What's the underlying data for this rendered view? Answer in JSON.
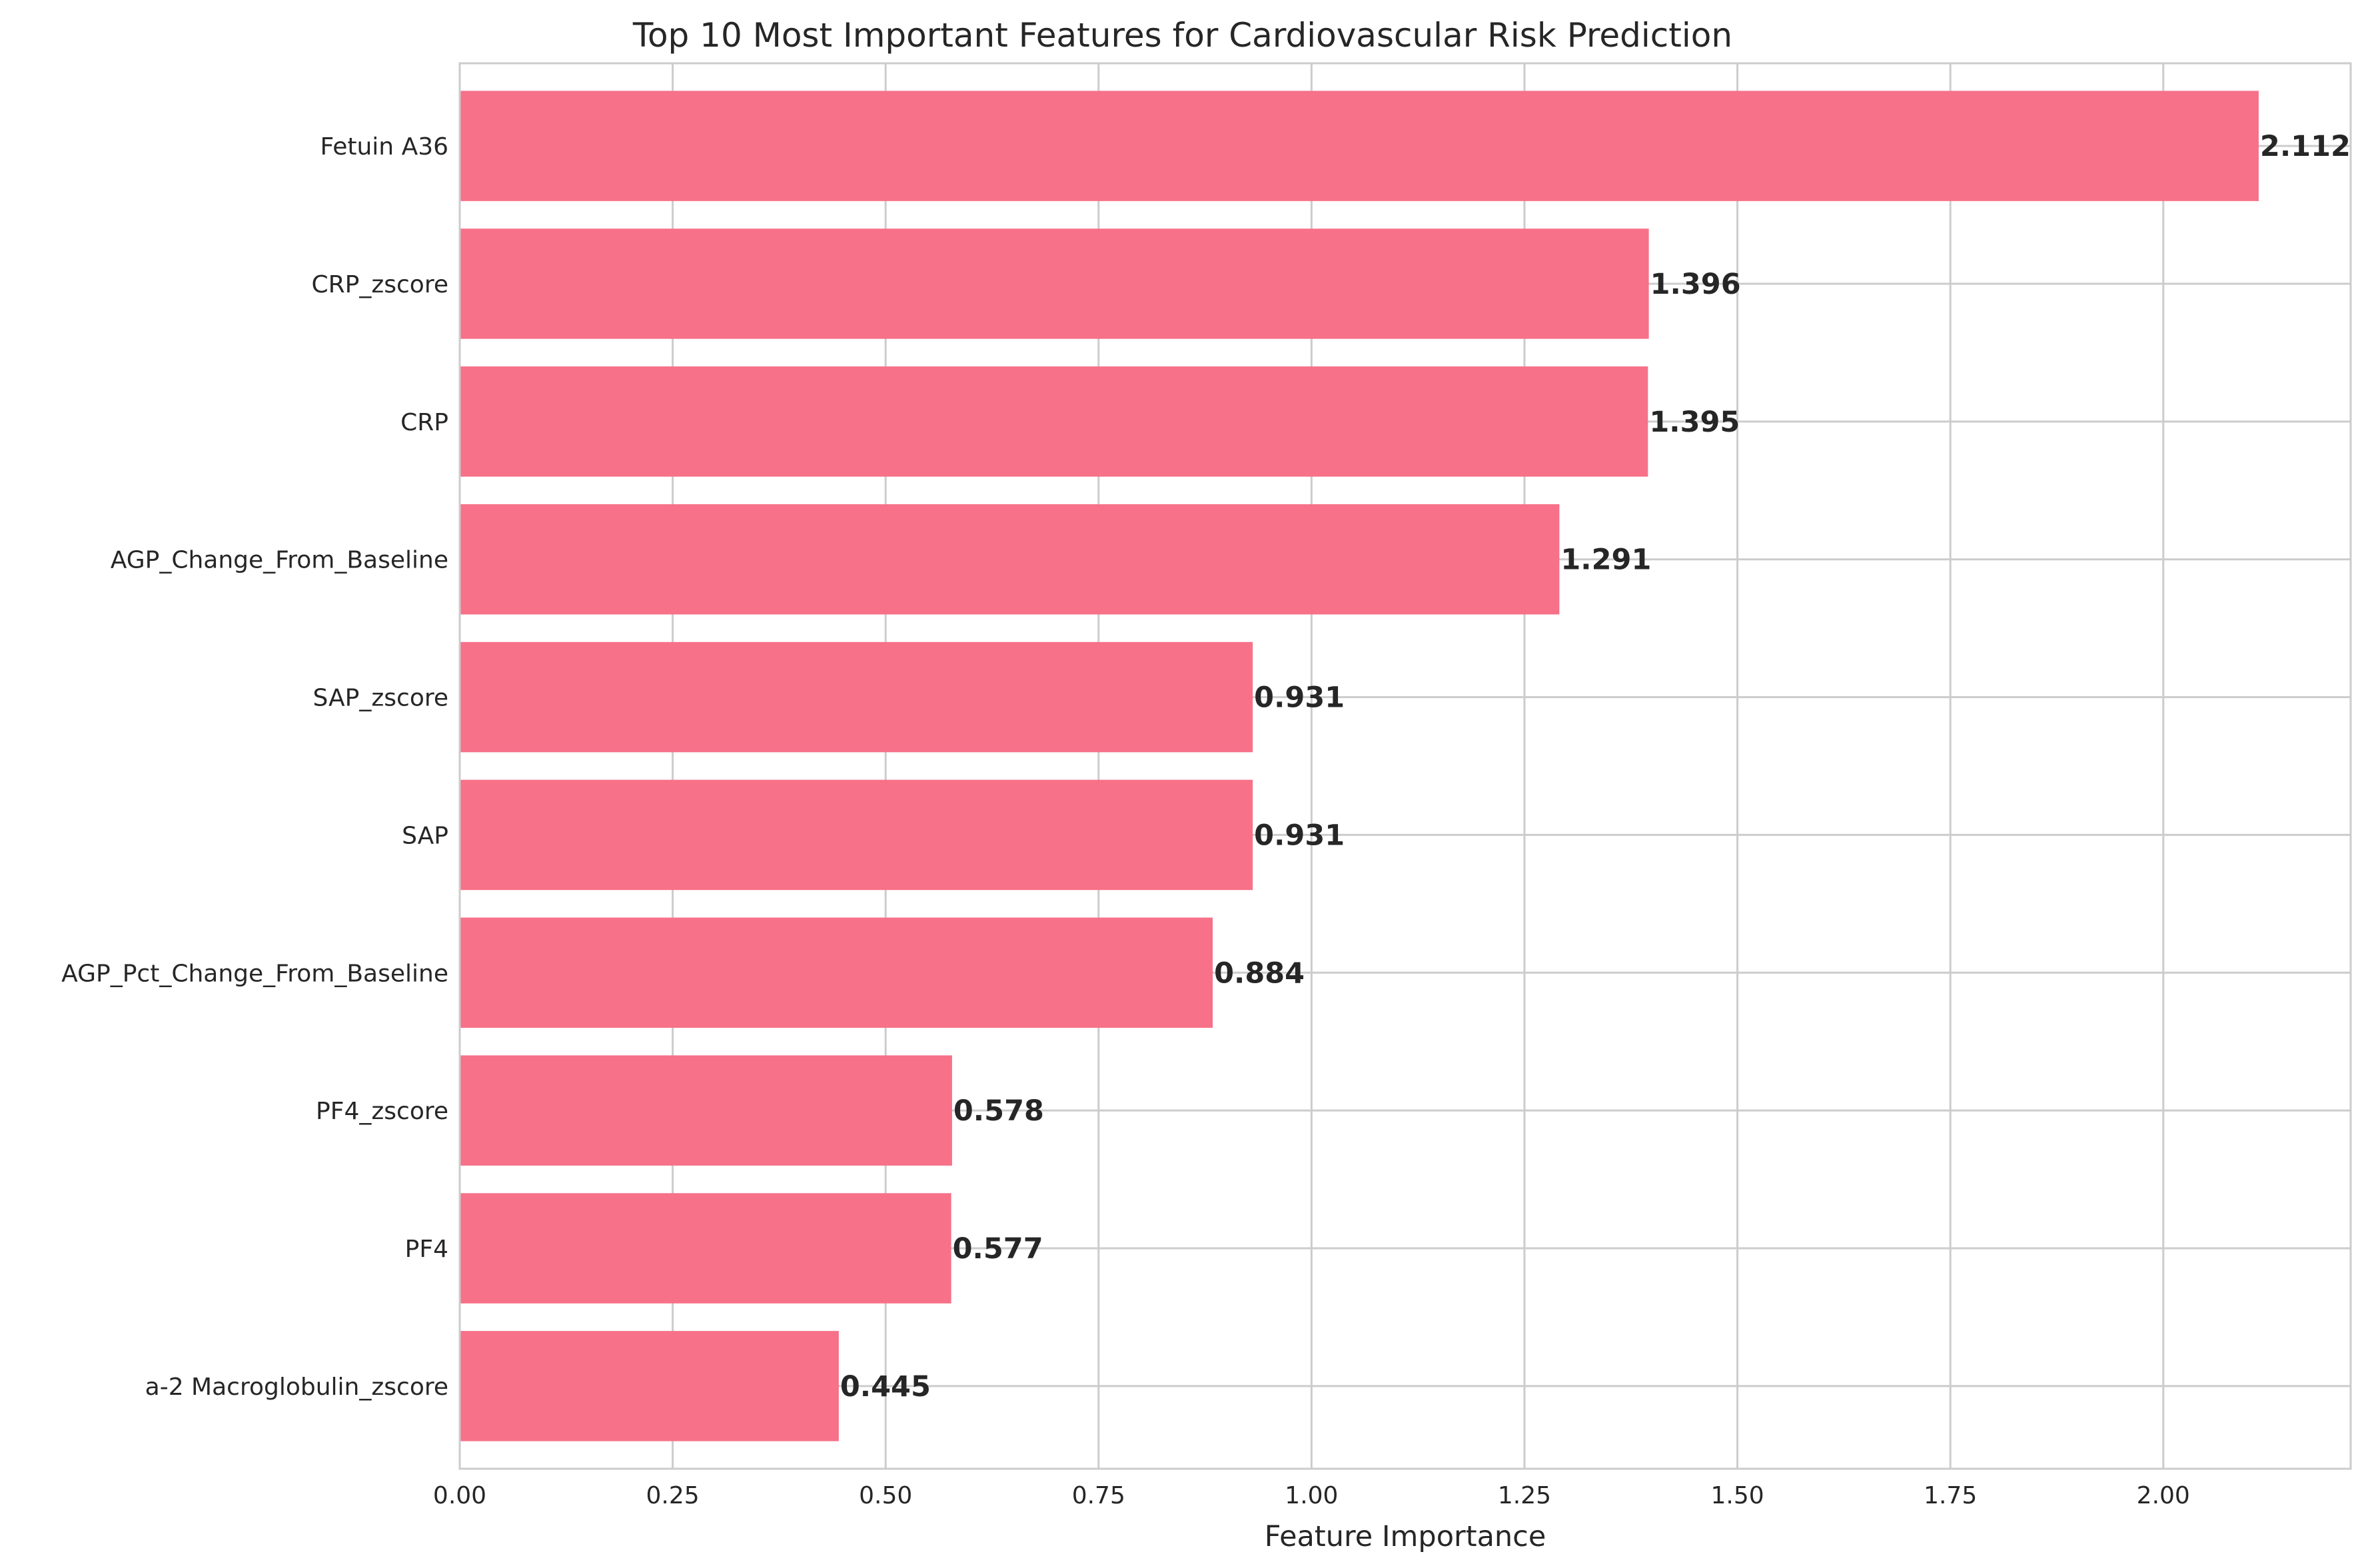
{
  "chart_data": {
    "type": "bar",
    "orientation": "horizontal",
    "title": "Top 10 Most Important Features for Cardiovascular Risk Prediction",
    "xlabel": "Feature Importance",
    "ylabel": "",
    "xlim": [
      0,
      2.22
    ],
    "x_ticks": [
      0.0,
      0.25,
      0.5,
      0.75,
      1.0,
      1.25,
      1.5,
      1.75,
      2.0
    ],
    "x_tick_labels": [
      "0.00",
      "0.25",
      "0.50",
      "0.75",
      "1.00",
      "1.25",
      "1.50",
      "1.75",
      "2.00"
    ],
    "grid": true,
    "bar_color": "#f77189",
    "categories": [
      "Fetuin A36",
      "CRP_zscore",
      "CRP",
      "AGP_Change_From_Baseline",
      "SAP_zscore",
      "SAP",
      "AGP_Pct_Change_From_Baseline",
      "PF4_zscore",
      "PF4",
      "a-2 Macroglobulin_zscore"
    ],
    "values": [
      2.112,
      1.396,
      1.395,
      1.291,
      0.931,
      0.931,
      0.884,
      0.578,
      0.577,
      0.445
    ],
    "value_labels": [
      "2.112",
      "1.396",
      "1.395",
      "1.291",
      "0.931",
      "0.931",
      "0.884",
      "0.578",
      "0.577",
      "0.445"
    ]
  }
}
